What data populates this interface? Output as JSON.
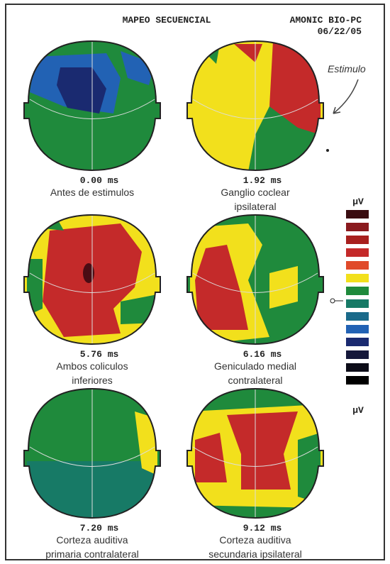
{
  "header": {
    "title": "MAPEO SECUENCIAL",
    "system": "AMONIC BIO-PC",
    "date": "06/22/05"
  },
  "annotation": "Estimulo",
  "panels": [
    {
      "time": "0.00 ms",
      "caption": [
        "Antes de estimulos"
      ]
    },
    {
      "time": "1.92 ms",
      "caption": [
        "Ganglio coclear",
        "ipsilateral"
      ]
    },
    {
      "time": "5.76 ms",
      "caption": [
        "Ambos coliculos",
        "inferiores"
      ]
    },
    {
      "time": "6.16 ms",
      "caption": [
        "Geniculado medial",
        "contralateral"
      ]
    },
    {
      "time": "7.20 ms",
      "caption": [
        "Corteza auditiva",
        "primaria contralateral"
      ]
    },
    {
      "time": "9.12 ms",
      "caption": [
        "Corteza auditiva",
        "secundaria ipsilateral"
      ]
    }
  ],
  "legend": {
    "unit_top": "µV",
    "unit_bottom": "µV"
  }
}
